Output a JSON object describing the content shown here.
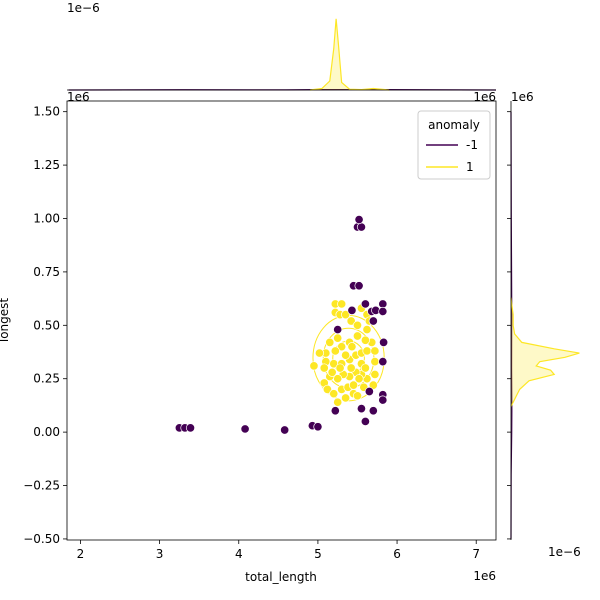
{
  "chart_data": {
    "type": "scatter",
    "title": "",
    "xlabel": "total_length",
    "ylabel": "longest",
    "x_offset_label": "1e6",
    "y_offset_label": "1e6",
    "xlim": [
      1.83,
      7.25
    ],
    "ylim": [
      -0.505,
      1.55
    ],
    "x_ticks": [
      2,
      3,
      4,
      5,
      6,
      7
    ],
    "y_ticks": [
      -0.5,
      -0.25,
      0.0,
      0.25,
      0.5,
      0.75,
      1.0,
      1.25,
      1.5
    ],
    "x_tick_labels": [
      "2",
      "3",
      "4",
      "5",
      "6",
      "7"
    ],
    "y_tick_labels": [
      "−0.50",
      "−0.25",
      "0.00",
      "0.25",
      "0.50",
      "0.75",
      "1.00",
      "1.25",
      "1.50"
    ],
    "grid": false,
    "legend": {
      "title": "anomaly",
      "location": "top-right",
      "entries": [
        {
          "label": "-1",
          "color": "#440154"
        },
        {
          "label": "1",
          "color": "#fde725"
        }
      ]
    },
    "colors": {
      "anomaly_neg": "#440154",
      "anomaly_pos": "#fde725",
      "pos_edge": "#ffffff"
    },
    "series": [
      {
        "name": "-1",
        "color": "#440154",
        "points": [
          [
            3.25,
            0.02
          ],
          [
            3.32,
            0.02
          ],
          [
            3.39,
            0.02
          ],
          [
            4.08,
            0.015
          ],
          [
            4.58,
            0.01
          ],
          [
            4.93,
            0.03
          ],
          [
            5.0,
            0.025
          ],
          [
            5.25,
            0.48
          ],
          [
            5.22,
            0.1
          ],
          [
            5.43,
            0.57
          ],
          [
            5.45,
            0.685
          ],
          [
            5.52,
            0.685
          ],
          [
            5.5,
            0.96
          ],
          [
            5.55,
            0.96
          ],
          [
            5.52,
            0.995
          ],
          [
            5.6,
            0.6
          ],
          [
            5.68,
            0.565
          ],
          [
            5.73,
            0.57
          ],
          [
            5.7,
            0.52
          ],
          [
            5.82,
            0.6
          ],
          [
            5.82,
            0.565
          ],
          [
            5.83,
            0.42
          ],
          [
            5.82,
            0.33
          ],
          [
            5.82,
            0.175
          ],
          [
            5.82,
            0.15
          ],
          [
            5.65,
            0.19
          ],
          [
            5.7,
            0.1
          ],
          [
            5.55,
            0.11
          ],
          [
            5.6,
            0.05
          ]
        ]
      },
      {
        "name": "1",
        "color": "#fde725",
        "points": [
          [
            5.22,
            0.6
          ],
          [
            5.3,
            0.6
          ],
          [
            5.22,
            0.56
          ],
          [
            5.28,
            0.55
          ],
          [
            5.35,
            0.55
          ],
          [
            5.42,
            0.52
          ],
          [
            5.5,
            0.5
          ],
          [
            5.55,
            0.58
          ],
          [
            5.62,
            0.55
          ],
          [
            5.65,
            0.52
          ],
          [
            5.62,
            0.48
          ],
          [
            5.5,
            0.45
          ],
          [
            5.4,
            0.42
          ],
          [
            5.3,
            0.4
          ],
          [
            5.22,
            0.38
          ],
          [
            5.1,
            0.37
          ],
          [
            5.02,
            0.37
          ],
          [
            4.95,
            0.31
          ],
          [
            5.1,
            0.33
          ],
          [
            5.2,
            0.32
          ],
          [
            5.3,
            0.32
          ],
          [
            5.4,
            0.34
          ],
          [
            5.48,
            0.36
          ],
          [
            5.55,
            0.37
          ],
          [
            5.62,
            0.38
          ],
          [
            5.68,
            0.42
          ],
          [
            5.72,
            0.38
          ],
          [
            5.72,
            0.33
          ],
          [
            5.72,
            0.27
          ],
          [
            5.7,
            0.22
          ],
          [
            5.62,
            0.25
          ],
          [
            5.55,
            0.27
          ],
          [
            5.48,
            0.28
          ],
          [
            5.4,
            0.26
          ],
          [
            5.32,
            0.27
          ],
          [
            5.25,
            0.25
          ],
          [
            5.15,
            0.26
          ],
          [
            5.08,
            0.23
          ],
          [
            5.12,
            0.2
          ],
          [
            5.2,
            0.18
          ],
          [
            5.3,
            0.2
          ],
          [
            5.38,
            0.21
          ],
          [
            5.45,
            0.18
          ],
          [
            5.5,
            0.17
          ],
          [
            5.35,
            0.16
          ],
          [
            5.25,
            0.14
          ],
          [
            5.42,
            0.3
          ],
          [
            5.45,
            0.22
          ],
          [
            5.55,
            0.32
          ],
          [
            5.6,
            0.3
          ],
          [
            5.6,
            0.43
          ],
          [
            5.52,
            0.25
          ],
          [
            5.18,
            0.28
          ],
          [
            5.28,
            0.3
          ],
          [
            5.35,
            0.36
          ],
          [
            5.15,
            0.42
          ],
          [
            5.08,
            0.3
          ],
          [
            5.43,
            0.4
          ],
          [
            5.58,
            0.21
          ],
          [
            5.25,
            0.44
          ]
        ]
      }
    ],
    "marginal_top": {
      "type": "kde",
      "offset_label": "1e−6",
      "series": [
        {
          "name": "-1",
          "color": "#440154",
          "x": [
            1.85,
            3.3,
            4.1,
            4.6,
            5.0,
            5.5,
            5.8,
            7.25
          ],
          "density": [
            0.0,
            0.003,
            0.002,
            0.002,
            0.005,
            0.006,
            0.005,
            0.0
          ]
        },
        {
          "name": "1",
          "color": "#fde725",
          "x": [
            4.9,
            5.05,
            5.15,
            5.2,
            5.23,
            5.26,
            5.3,
            5.4,
            5.55,
            5.7,
            5.8,
            5.9
          ],
          "density": [
            0.0,
            0.02,
            0.12,
            0.55,
            0.95,
            0.6,
            0.1,
            0.01,
            0.005,
            0.02,
            0.01,
            0.0
          ]
        }
      ]
    },
    "marginal_right": {
      "type": "kde",
      "offset_label": "1e6",
      "bottom_offset_label": "1e−6",
      "series": [
        {
          "name": "-1",
          "color": "#440154",
          "y": [
            -0.5,
            -0.2,
            0.0,
            0.1,
            0.3,
            0.6,
            1.0,
            1.5
          ],
          "density": [
            0.0,
            0.002,
            0.01,
            0.012,
            0.008,
            0.01,
            0.004,
            0.0
          ]
        },
        {
          "name": "1",
          "color": "#fde725",
          "y": [
            0.12,
            0.16,
            0.2,
            0.24,
            0.27,
            0.29,
            0.31,
            0.33,
            0.35,
            0.37,
            0.39,
            0.42,
            0.46,
            0.5,
            0.55,
            0.6,
            0.63
          ],
          "density": [
            0.0,
            0.06,
            0.12,
            0.25,
            0.6,
            0.55,
            0.35,
            0.4,
            0.75,
            0.95,
            0.6,
            0.15,
            0.05,
            0.03,
            0.03,
            0.01,
            0.0
          ]
        }
      ]
    }
  }
}
